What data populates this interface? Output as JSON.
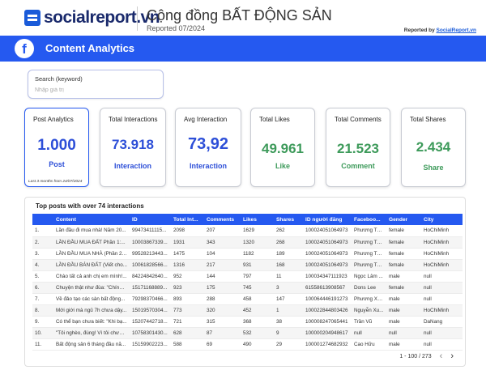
{
  "header": {
    "logo": "socialreport.vn",
    "title": "Cộng đồng BẤT ĐỘNG SẢN",
    "subtitle": "Reported 07/2024",
    "reported_by": "Reported by",
    "reported_by_link": "SocialReport.vn"
  },
  "band": {
    "icon": "facebook-icon",
    "title": "Content Analytics"
  },
  "search": {
    "label": "Search (keyword)",
    "placeholder": "Nhập giá trị"
  },
  "kpis": [
    {
      "label": "Post Analytics",
      "value": "1.000",
      "caption": "Post",
      "note": "Last 3 months from 24/07/2024",
      "color": "#2d4fd8"
    },
    {
      "label": "Total Interactions",
      "value": "73.918",
      "caption": "Interaction",
      "color": "#2d4fd8"
    },
    {
      "label": "Avg Interaction",
      "value": "73,92",
      "caption": "Interaction",
      "color": "#2d4fd8"
    },
    {
      "label": "Total Likes",
      "value": "49.961",
      "caption": "Like",
      "color": "#3d9a5a"
    },
    {
      "label": "Total Comments",
      "value": "21.523",
      "caption": "Comment",
      "color": "#3d9a5a"
    },
    {
      "label": "Total Shares",
      "value": "2.434",
      "caption": "Share",
      "color": "#3d9a5a"
    }
  ],
  "table": {
    "title": "Top posts with over 74 interactions",
    "columns": [
      "",
      "Content",
      "ID",
      "Total Int...",
      "Comments",
      "Likes",
      "Shares",
      "ID người đăng",
      "Faceboo...",
      "Gender",
      "City"
    ],
    "rows": [
      [
        "1.",
        "Lần đầu đi mua nhà! Năm 20...",
        "99473411115...",
        "2098",
        "207",
        "1629",
        "262",
        "100024051064973",
        "Phương Th...",
        "female",
        "HoChiMinh"
      ],
      [
        "2.",
        "LẦN ĐẦU MUA ĐẤT Phần 1:...",
        "10003867339...",
        "1931",
        "343",
        "1320",
        "268",
        "100024051064973",
        "Phương Th...",
        "female",
        "HoChiMinh"
      ],
      [
        "3.",
        "LẦN ĐẦU MUA NHÀ (Phần 2 : Đ...",
        "99528213443...",
        "1475",
        "104",
        "1182",
        "189",
        "100024051064973",
        "Phương Th...",
        "female",
        "HoChiMinh"
      ],
      [
        "4.",
        "LẦN ĐẦU BÁN ĐẤT (Viết cho...",
        "10061828566...",
        "1316",
        "217",
        "931",
        "168",
        "100024051064973",
        "Phương Th...",
        "female",
        "HoChiMinh"
      ],
      [
        "5.",
        "Chào tất cả anh chị em mình!...",
        "84224842640...",
        "952",
        "144",
        "797",
        "11",
        "100034347111923",
        "Ngọc Lâm ...",
        "male",
        "null"
      ],
      [
        "6.",
        "Chuyện thật như đùa: \"Chính ...",
        "15171168889...",
        "923",
        "175",
        "745",
        "3",
        "61558613908567",
        "Dons Lee",
        "female",
        "null"
      ],
      [
        "7.",
        "Về đảo tạo các sàn bất động...",
        "79298370466...",
        "893",
        "288",
        "458",
        "147",
        "100064446191273",
        "Phương Xu...",
        "male",
        "null"
      ],
      [
        "8.",
        "Mới giới mà ngủ 7h chưa dậy...",
        "15019570304...",
        "773",
        "320",
        "452",
        "1",
        "100022844803426",
        "Nguyễn Xu...",
        "male",
        "HoChiMinh"
      ],
      [
        "9.",
        "Có thể bạn chưa biết: \"Khi bạ...",
        "15207442718...",
        "721",
        "315",
        "368",
        "38",
        "100008247065441",
        "Trần Vũ",
        "male",
        "DaNang"
      ],
      [
        "10.",
        "\"Tôi nghèo, đúng! Vì tôi chưa ...",
        "10758301430...",
        "628",
        "87",
        "532",
        "9",
        "100000204948617",
        "null",
        "null",
        "null"
      ],
      [
        "11.",
        "Bất động sản 6 tháng đầu nă...",
        "15159902223...",
        "588",
        "69",
        "490",
        "29",
        "100001274682932",
        "Cao Hữu",
        "male",
        "null"
      ]
    ],
    "pagination": "1 - 100 / 273"
  }
}
